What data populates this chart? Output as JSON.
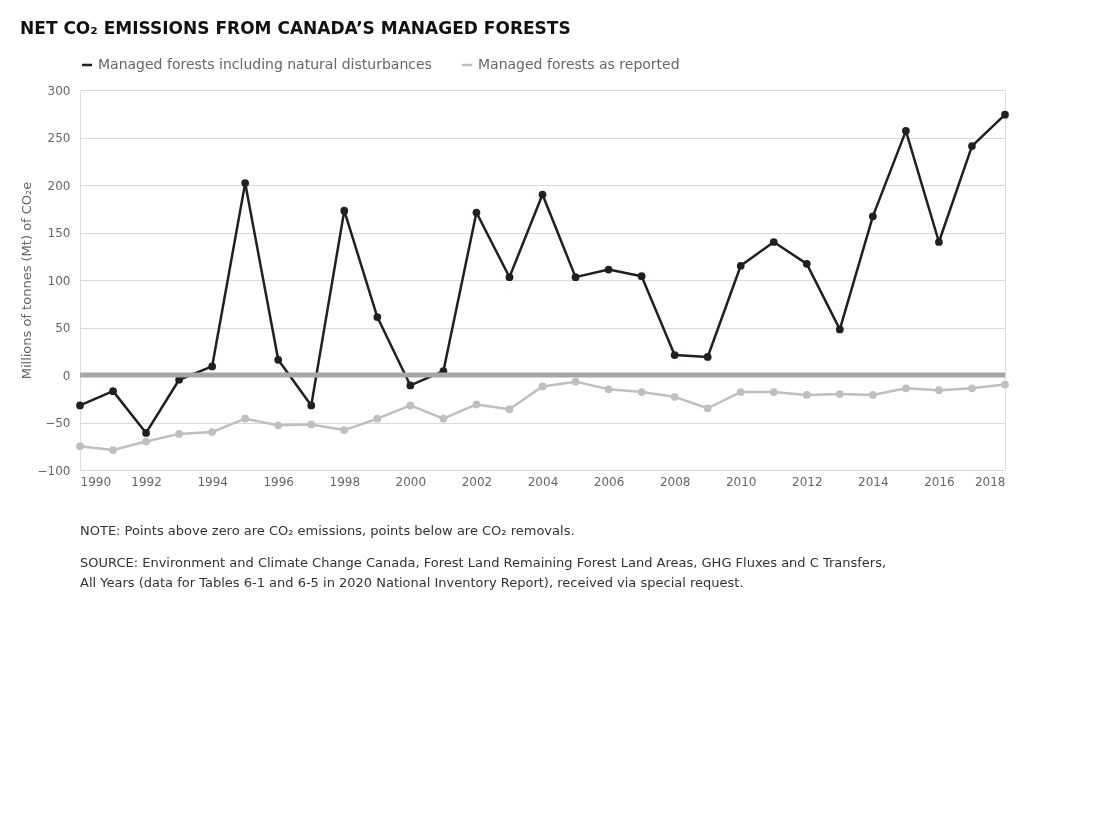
{
  "chart_data": {
    "type": "line",
    "title": "NET CO₂ EMISSIONS FROM CANADA’S MANAGED FORESTS",
    "ylabel": "Millions of tonnes (Mt) of CO₂e",
    "x": [
      1990,
      1991,
      1992,
      1993,
      1994,
      1995,
      1996,
      1997,
      1998,
      1999,
      2000,
      2001,
      2002,
      2003,
      2004,
      2005,
      2006,
      2007,
      2008,
      2009,
      2010,
      2011,
      2012,
      2013,
      2014,
      2015,
      2016,
      2017,
      2018
    ],
    "series": [
      {
        "name": "Managed forests including natural disturbances",
        "color": "#231f20",
        "values": [
          -32,
          -17,
          -61,
          -5,
          9,
          202,
          16,
          -32,
          173,
          61,
          -11,
          4,
          171,
          103,
          190,
          103,
          111,
          104,
          21,
          19,
          115,
          140,
          117,
          48,
          167,
          257,
          140,
          241,
          274
        ]
      },
      {
        "name": "Managed forests as reported",
        "color": "#bfbfbf",
        "values": [
          -75,
          -79,
          -70,
          -62,
          -60,
          -46,
          -53,
          -52,
          -58,
          -46,
          -32,
          -46,
          -31,
          -36,
          -12,
          -7,
          -15,
          -18,
          -23,
          -35,
          -18,
          -18,
          -21,
          -20,
          -21,
          -14,
          -16,
          -14,
          -10
        ]
      }
    ],
    "xlim": [
      1990,
      2018
    ],
    "xticks": [
      1990,
      1992,
      1994,
      1996,
      1998,
      2000,
      2002,
      2004,
      2006,
      2008,
      2010,
      2012,
      2014,
      2016,
      2018
    ],
    "ylim": [
      -100,
      300
    ],
    "yticks": [
      -100,
      -50,
      0,
      50,
      100,
      150,
      200,
      250,
      300
    ],
    "ref_lines": [
      {
        "axis": "y",
        "value": 0,
        "color": "#a6a6a6"
      }
    ],
    "grid": "y",
    "legend": "top",
    "marker": "circle",
    "line_style": "solid",
    "annotations": [
      "NOTE: Points above zero are CO₂ emissions, points below are CO₂ removals.",
      "SOURCE: Environment and Climate Change Canada, Forest Land Remaining Forest Land Areas, GHG Fluxes and C Transfers, All Years (data for Tables 6-1 and 6-5 in 2020 National Inventory Report), received via special request."
    ]
  }
}
